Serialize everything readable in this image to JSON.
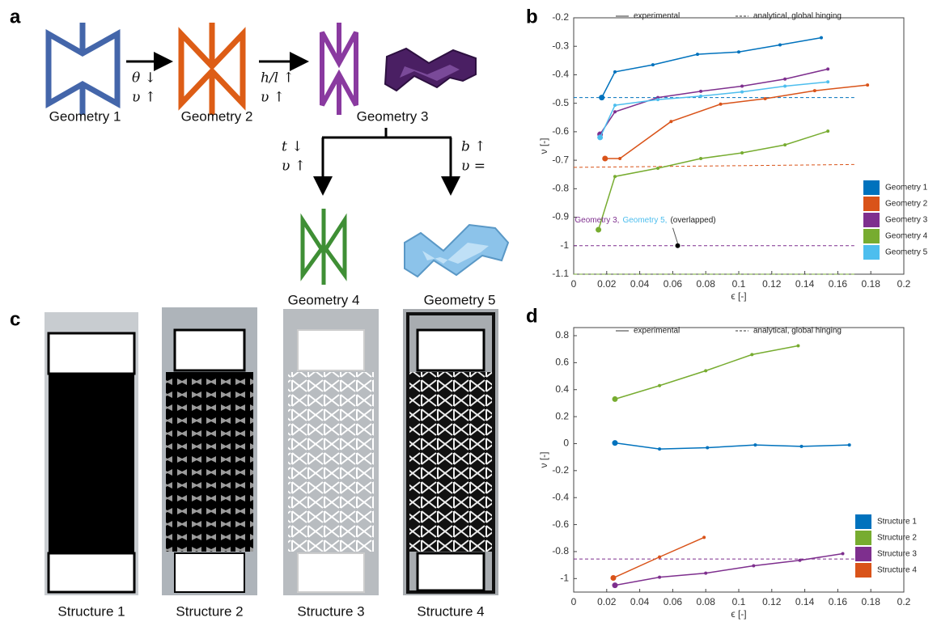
{
  "panel_labels": [
    "a",
    "b",
    "c",
    "d"
  ],
  "diagram": {
    "geometries": [
      "Geometry 1",
      "Geometry 2",
      "Geometry 3",
      "Geometry 4",
      "Geometry 5"
    ],
    "transitions": [
      [
        "θ ↓",
        "υ ↑"
      ],
      [
        "h/l ↑",
        "υ ↑"
      ],
      [
        "t ↓",
        "υ ↑"
      ],
      [
        "b ↑",
        "υ ="
      ]
    ]
  },
  "structures": [
    "Structure 1",
    "Structure 2",
    "Structure 3",
    "Structure 4"
  ],
  "chart_data": [
    {
      "type": "line",
      "xlabel": "ϵ [-]",
      "ylabel": "ν [-]",
      "line_styles": [
        "experimental",
        "analytical, global hinging"
      ],
      "xlim": [
        0,
        0.2
      ],
      "xticks": [
        0,
        0.02,
        0.04,
        0.06,
        0.08,
        0.1,
        0.12,
        0.14,
        0.16,
        0.18,
        0.2
      ],
      "ylim": [
        -1.1,
        -0.2
      ],
      "yticks": [
        -1.1,
        -1,
        -0.9,
        -0.8,
        -0.7,
        -0.6,
        -0.5,
        -0.4,
        -0.3,
        -0.2
      ],
      "series": [
        {
          "name": "Geometry 1",
          "color": "#0072bd",
          "x": [
            0.017,
            0.025,
            0.048,
            0.075,
            0.1,
            0.125,
            0.15
          ],
          "values": [
            -0.48,
            -0.39,
            -0.365,
            -0.328,
            -0.32,
            -0.295,
            -0.27
          ]
        },
        {
          "name": "Geometry 2",
          "color": "#d95319",
          "x": [
            0.019,
            0.028,
            0.059,
            0.089,
            0.116,
            0.146,
            0.178
          ],
          "values": [
            -0.694,
            -0.694,
            -0.564,
            -0.503,
            -0.484,
            -0.456,
            -0.436
          ]
        },
        {
          "name": "Geometry 3",
          "color": "#7e2f8e",
          "x": [
            0.016,
            0.025,
            0.051,
            0.077,
            0.102,
            0.128,
            0.154
          ],
          "values": [
            -0.609,
            -0.53,
            -0.48,
            -0.458,
            -0.44,
            -0.415,
            -0.38
          ]
        },
        {
          "name": "Geometry 4",
          "color": "#77ac30",
          "x": [
            0.015,
            0.025,
            0.051,
            0.077,
            0.102,
            0.128,
            0.154
          ],
          "values": [
            -0.944,
            -0.757,
            -0.728,
            -0.694,
            -0.674,
            -0.646,
            -0.598
          ]
        },
        {
          "name": "Geometry 5",
          "color": "#4dbeee",
          "x": [
            0.016,
            0.025,
            0.051,
            0.077,
            0.102,
            0.128,
            0.154
          ],
          "values": [
            -0.62,
            -0.507,
            -0.487,
            -0.475,
            -0.46,
            -0.44,
            -0.425
          ]
        }
      ],
      "analytical": [
        {
          "color": "#0072bd",
          "x": [
            0,
            0.17
          ],
          "values": [
            -0.48,
            -0.48
          ]
        },
        {
          "color": "#d95319",
          "x": [
            0,
            0.17
          ],
          "values": [
            -0.725,
            -0.715
          ]
        },
        {
          "color": "#7e2f8e",
          "x": [
            0,
            0.17
          ],
          "values": [
            -1,
            -1
          ]
        },
        {
          "color": "#77ac30",
          "x": [
            0,
            0.17
          ],
          "values": [
            -1.1,
            -1.1
          ]
        }
      ],
      "annotation": {
        "parts": [
          "Geometry 3,",
          "Geometry 5,",
          "(overlapped)"
        ],
        "colors": [
          "#7e2f8e",
          "#4dbeee",
          "#222222"
        ],
        "x": 0.063,
        "y": -1
      }
    },
    {
      "type": "line",
      "xlabel": "ϵ [-]",
      "ylabel": "ν [-]",
      "line_styles": [
        "experimental",
        "analytical, global hinging"
      ],
      "xlim": [
        0,
        0.2
      ],
      "xticks": [
        0,
        0.02,
        0.04,
        0.06,
        0.08,
        0.1,
        0.12,
        0.14,
        0.16,
        0.18,
        0.2
      ],
      "ylim": [
        -1.1,
        0.86
      ],
      "yticks": [
        -1,
        -0.8,
        -0.6,
        -0.4,
        -0.2,
        0,
        0.2,
        0.4,
        0.6,
        0.8
      ],
      "series": [
        {
          "name": "Structure 1",
          "color": "#0072bd",
          "x": [
            0.025,
            0.052,
            0.081,
            0.11,
            0.138,
            0.167
          ],
          "values": [
            0.005,
            -0.04,
            -0.03,
            -0.01,
            -0.02,
            -0.01
          ]
        },
        {
          "name": "Structure 2",
          "color": "#77ac30",
          "x": [
            0.025,
            0.052,
            0.08,
            0.108,
            0.136
          ],
          "values": [
            0.33,
            0.43,
            0.54,
            0.66,
            0.725
          ]
        },
        {
          "name": "Structure 3",
          "color": "#7e2f8e",
          "x": [
            0.025,
            0.052,
            0.08,
            0.109,
            0.137,
            0.163
          ],
          "values": [
            -1.05,
            -0.99,
            -0.96,
            -0.905,
            -0.865,
            -0.815
          ]
        },
        {
          "name": "Structure 4",
          "color": "#d95319",
          "x": [
            0.024,
            0.052,
            0.079
          ],
          "values": [
            -0.995,
            -0.84,
            -0.695
          ]
        }
      ],
      "analytical": [
        {
          "color": "#7e2f8e",
          "x": [
            0,
            0.17
          ],
          "values": [
            -0.855,
            -0.855
          ]
        }
      ]
    }
  ]
}
